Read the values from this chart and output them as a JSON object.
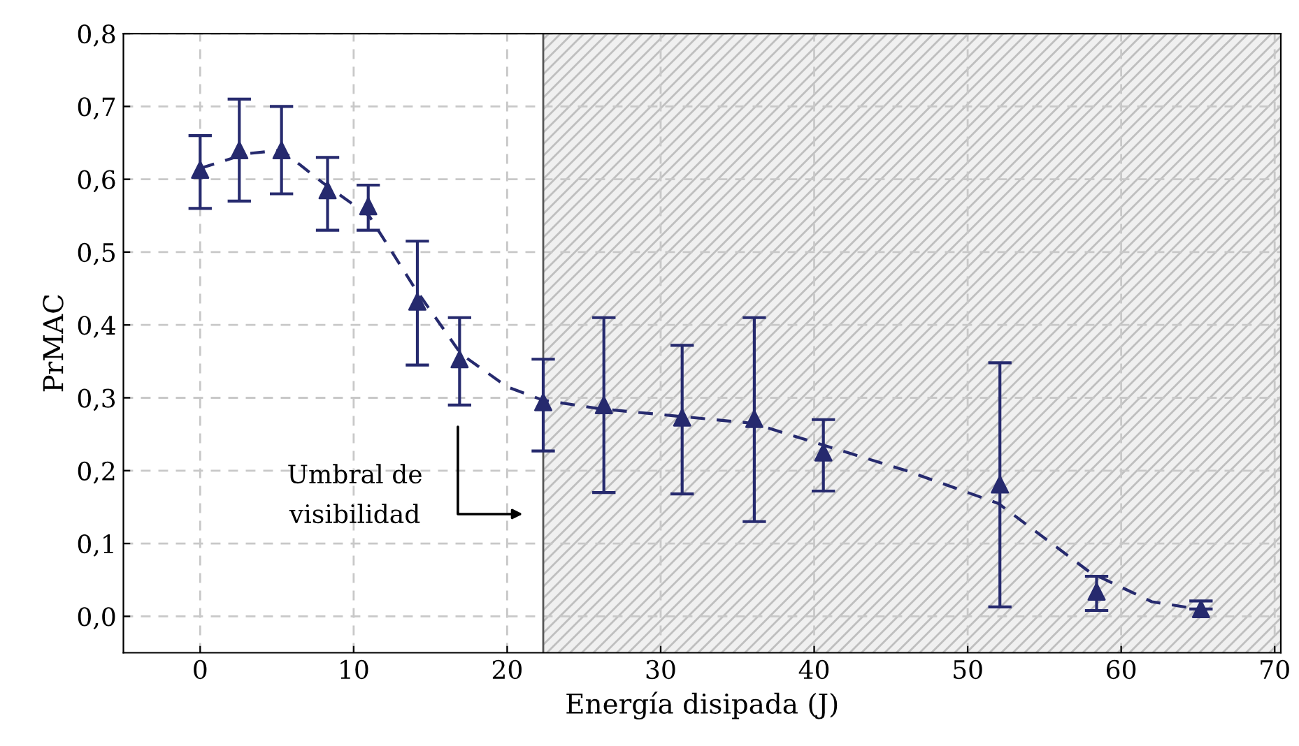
{
  "chart_data": {
    "type": "scatter",
    "xlabel": "Energía disipada (J)",
    "ylabel": "PrMAC",
    "xlim": [
      -5,
      70.4
    ],
    "ylim": [
      -0.05,
      0.8
    ],
    "xticks": [
      0,
      10,
      20,
      30,
      40,
      50,
      60,
      70
    ],
    "yticks": [
      {
        "value": 0.0,
        "label": "0,0"
      },
      {
        "value": 0.1,
        "label": "0,1"
      },
      {
        "value": 0.2,
        "label": "0,2"
      },
      {
        "value": 0.3,
        "label": "0,3"
      },
      {
        "value": 0.4,
        "label": "0,4"
      },
      {
        "value": 0.5,
        "label": "0,5"
      },
      {
        "value": 0.6,
        "label": "0,6"
      },
      {
        "value": 0.7,
        "label": "0,7"
      },
      {
        "value": 0.8,
        "label": "0,8"
      }
    ],
    "grid": true,
    "series": [
      {
        "type": "line",
        "color": "#262a6e",
        "marker": "none",
        "line_style": "dashed",
        "x": [
          0,
          3,
          5.3,
          8,
          11,
          14,
          17,
          20,
          22.3,
          26,
          31,
          36,
          40.6,
          46,
          52,
          58,
          62,
          65
        ],
        "values": [
          0.615,
          0.635,
          0.64,
          0.595,
          0.55,
          0.45,
          0.36,
          0.315,
          0.297,
          0.285,
          0.275,
          0.265,
          0.235,
          0.2,
          0.155,
          0.06,
          0.02,
          0.01
        ]
      },
      {
        "color": "#262a6e",
        "marker": "triangle",
        "x": [
          0,
          2.55,
          5.3,
          8.3,
          10.95,
          14.15,
          16.9,
          22.35,
          26.3,
          31.4,
          36.1,
          40.6,
          52.1,
          58.4,
          65.2
        ],
        "values": [
          0.613,
          0.64,
          0.64,
          0.585,
          0.563,
          0.432,
          0.353,
          0.294,
          0.29,
          0.273,
          0.271,
          0.225,
          0.181,
          0.034,
          0.01
        ],
        "errors": [
          [
            0.56,
            0.66
          ],
          [
            0.57,
            0.71
          ],
          [
            0.58,
            0.7
          ],
          [
            0.53,
            0.63
          ],
          [
            0.53,
            0.592
          ],
          [
            0.345,
            0.515
          ],
          [
            0.29,
            0.41
          ],
          [
            0.227,
            0.353
          ],
          [
            0.17,
            0.41
          ],
          [
            0.168,
            0.372
          ],
          [
            0.13,
            0.41
          ],
          [
            0.172,
            0.27
          ],
          [
            0.013,
            0.348
          ],
          [
            0.008,
            0.055
          ],
          [
            0.01,
            0.021
          ]
        ]
      }
    ],
    "bands": [
      {
        "axis": "x",
        "from": 22.35,
        "to": 70.4,
        "color": "#f0f0f0"
      }
    ],
    "ref_lines": [
      {
        "axis": "x",
        "value": 22.35,
        "color": "#555555"
      }
    ],
    "annotations": [
      "Umbral de\nvisibilidad"
    ]
  }
}
